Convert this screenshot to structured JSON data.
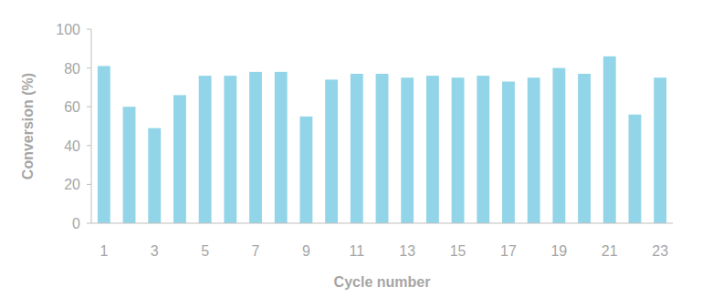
{
  "chart_data": {
    "type": "bar",
    "x_label": "Cycle number",
    "y_label": "Conversion (%)",
    "categories": [
      "1",
      null,
      "3",
      null,
      "5",
      null,
      "7",
      null,
      "9",
      null,
      "11",
      null,
      "13",
      null,
      "15",
      null,
      "17",
      null,
      "19",
      null,
      "21",
      null,
      "23"
    ],
    "values": [
      81,
      60,
      49,
      66,
      76,
      76,
      78,
      78,
      55,
      74,
      77,
      77,
      75,
      76,
      75,
      76,
      73,
      75,
      80,
      77,
      86,
      56,
      75
    ],
    "color": "#92d5e8",
    "ylim": [
      0,
      100
    ],
    "yticks": [
      0,
      20,
      40,
      60,
      80,
      100
    ],
    "grid": false
  }
}
